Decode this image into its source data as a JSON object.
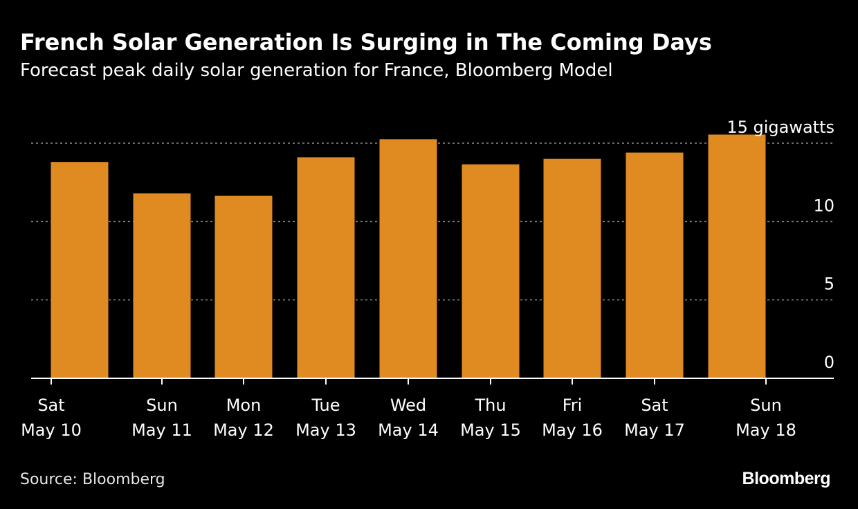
{
  "header": {
    "title": "French Solar Generation Is Surging in The Coming Days",
    "subtitle": "Forecast peak daily solar generation for France, Bloomberg Model"
  },
  "footer": {
    "source": "Source: Bloomberg",
    "logo_text": "Bloomberg"
  },
  "colors": {
    "background": "#000000",
    "bar": "#e08a22",
    "text": "#ffffff",
    "axis": "#ffffff",
    "gridline": "#8c8c8c"
  },
  "chart_data": {
    "type": "bar",
    "title": "French Solar Generation Is Surging in The Coming Days",
    "subtitle": "Forecast peak daily solar generation for France, Bloomberg Model",
    "xlabel": "",
    "ylabel": "gigawatts",
    "ylim": [
      0,
      15
    ],
    "yticks": [
      0,
      5,
      10,
      15
    ],
    "ytick_labels": [
      "0",
      "5",
      "10",
      "15 gigawatts"
    ],
    "grid": true,
    "y_axis_side": "right",
    "categories": [
      [
        "Sat",
        "May 10"
      ],
      [
        "Sun",
        "May 11"
      ],
      [
        "Mon",
        "May 12"
      ],
      [
        "Tue",
        "May 13"
      ],
      [
        "Wed",
        "May 14"
      ],
      [
        "Thu",
        "May 15"
      ],
      [
        "Fri",
        "May 16"
      ],
      [
        "Sat",
        "May 17"
      ],
      [
        "Sun",
        "May 18"
      ]
    ],
    "series": [
      {
        "name": "Peak daily solar generation",
        "values": [
          13.8,
          11.8,
          11.65,
          14.1,
          15.25,
          13.65,
          14.0,
          14.4,
          15.55
        ]
      }
    ]
  }
}
